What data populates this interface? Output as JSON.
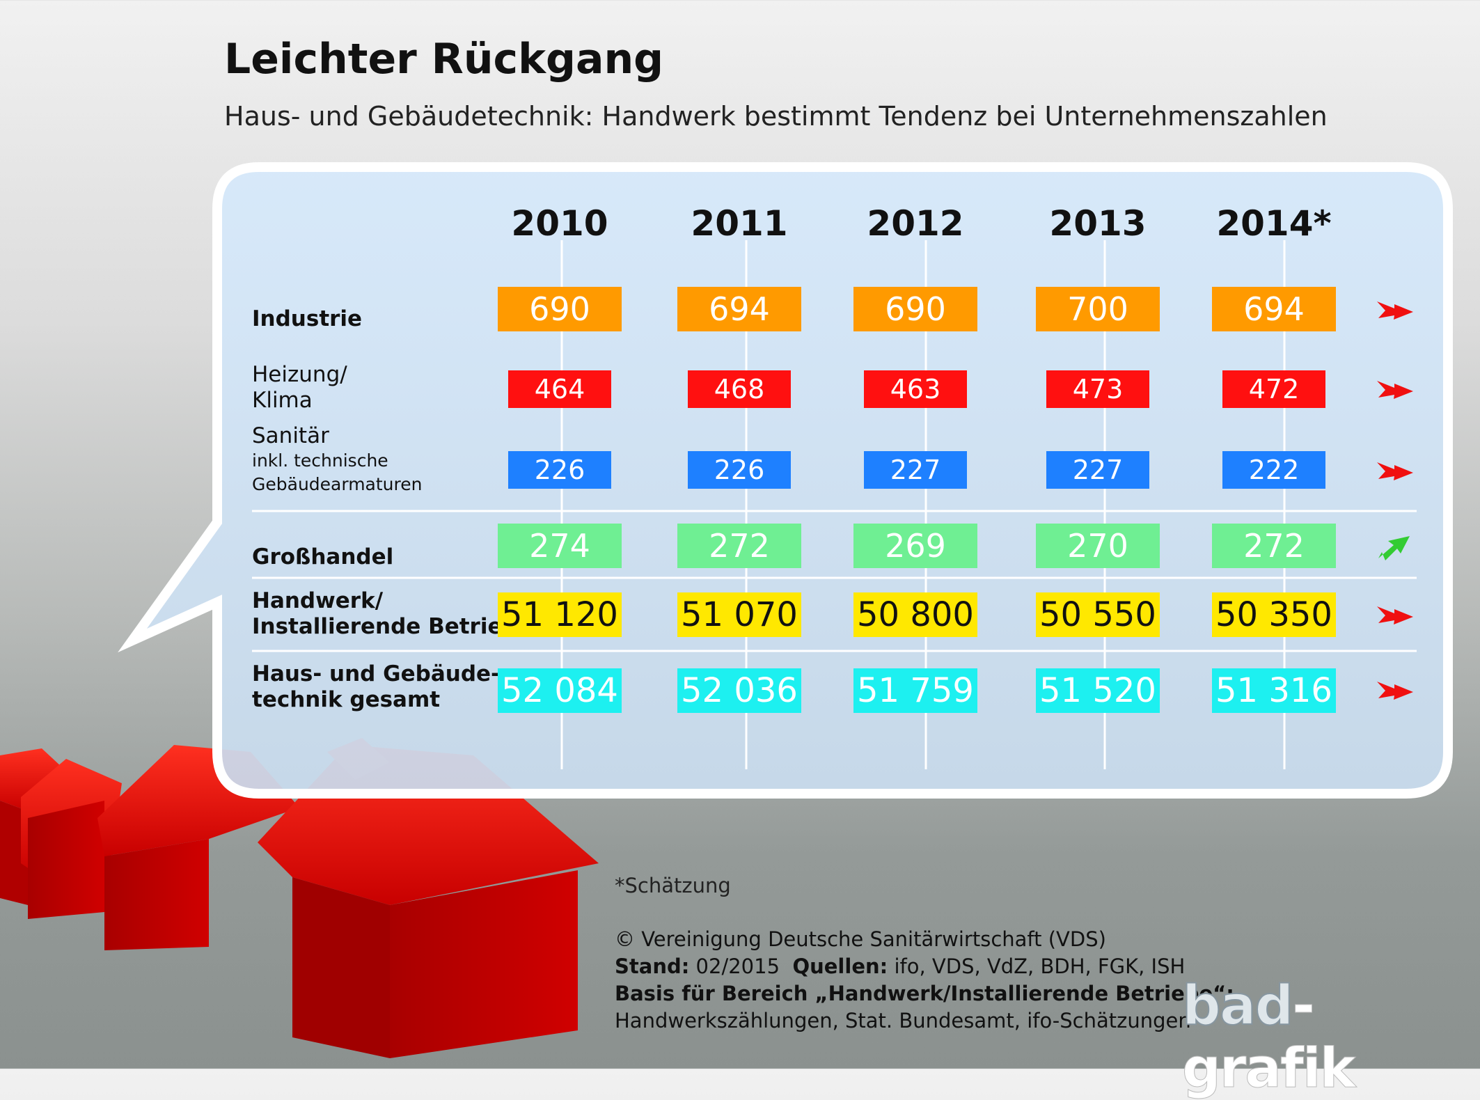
{
  "header": {
    "title": "Leichter Rückgang",
    "subtitle": "Haus- und Gebäudetechnik: Handwerk bestimmt Tendenz bei Unternehmenszahlen"
  },
  "chart_data": {
    "type": "table",
    "columns": [
      "2010",
      "2011",
      "2012",
      "2013",
      "2014*"
    ],
    "rows": [
      {
        "label": "Industrie",
        "values": [
          690,
          694,
          690,
          700,
          694
        ],
        "display": [
          "690",
          "694",
          "690",
          "700",
          "694"
        ],
        "color": "#ff9a00",
        "text_color": "#ffffff",
        "trend": "down"
      },
      {
        "label": "Heizung/\nKlima",
        "values": [
          464,
          468,
          463,
          473,
          472
        ],
        "display": [
          "464",
          "468",
          "463",
          "473",
          "472"
        ],
        "color": "#ff1010",
        "text_color": "#ffffff",
        "trend": "down"
      },
      {
        "label": "Sanitär",
        "sublabel": "inkl. technische\nGebäudearmaturen",
        "values": [
          226,
          226,
          227,
          227,
          222
        ],
        "display": [
          "226",
          "226",
          "227",
          "227",
          "222"
        ],
        "color": "#1e80ff",
        "text_color": "#ffffff",
        "trend": "down"
      },
      {
        "label": "Großhandel",
        "values": [
          274,
          272,
          269,
          270,
          272
        ],
        "display": [
          "274",
          "272",
          "269",
          "270",
          "272"
        ],
        "color": "#6fef93",
        "text_color": "#ffffff",
        "trend": "up"
      },
      {
        "label": "Handwerk/\nInstallierende Betriebe",
        "values": [
          51120,
          51070,
          50800,
          50550,
          50350
        ],
        "display": [
          "51 120",
          "51 070",
          "50 800",
          "50 550",
          "50 350"
        ],
        "color": "#ffe800",
        "text_color": "#111111",
        "trend": "down"
      },
      {
        "label": "Haus- und Gebäude-\ntechnik gesamt",
        "values": [
          52084,
          52036,
          51759,
          51520,
          51316
        ],
        "display": [
          "52 084",
          "52 036",
          "51 759",
          "51 520",
          "51 316"
        ],
        "color": "#1df0f0",
        "text_color": "#ffffff",
        "trend": "down"
      }
    ],
    "trend_colors": {
      "down": "#f01010",
      "up": "#33cc33"
    }
  },
  "footer": {
    "footnote": "*Schätzung",
    "copyright": "© Vereinigung Deutsche Sanitärwirtschaft (VDS)",
    "stand_label": "Stand:",
    "stand_value": "02/2015",
    "quellen_label": "Quellen:",
    "quellen_value": "ifo, VDS, VdZ, BDH, FGK, ISH",
    "basis_label": "Basis für Bereich „Handwerk/Installierende Betriebe“:",
    "basis_value": "Handwerkszählungen, Stat. Bundesamt, ifo-Schätzungen"
  },
  "logo": {
    "part1": "bad",
    "part2": "-grafik"
  }
}
